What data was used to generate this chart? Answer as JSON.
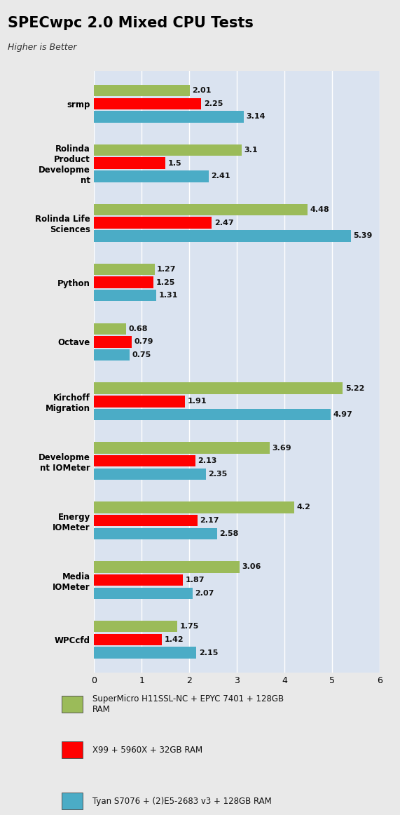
{
  "title": "SPECwpc 2.0 Mixed CPU Tests",
  "subtitle": "Higher is Better",
  "categories": [
    "srmp",
    "Rolinda\nProduct\nDevelopme\nnt",
    "Rolinda Life\nSciences",
    "Python",
    "Octave",
    "Kirchoff\nMigration",
    "Developme\nnt IOMeter",
    "Energy\nIOMeter",
    "Media\nIOMeter",
    "WPCcfd"
  ],
  "series": [
    {
      "name": "SuperMicro H11SSL-NC + EPYC 7401 + 128GB\nRAM",
      "color": "#9BBB59",
      "values": [
        2.01,
        3.1,
        4.48,
        1.27,
        0.68,
        5.22,
        3.69,
        4.2,
        3.06,
        1.75
      ]
    },
    {
      "name": "X99 + 5960X + 32GB RAM",
      "color": "#FF0000",
      "values": [
        2.25,
        1.5,
        2.47,
        1.25,
        0.79,
        1.91,
        2.13,
        2.17,
        1.87,
        1.42
      ]
    },
    {
      "name": "Tyan S7076 + (2)E5-2683 v3 + 128GB RAM",
      "color": "#4BACC6",
      "values": [
        3.14,
        2.41,
        5.39,
        1.31,
        0.75,
        4.97,
        2.35,
        2.58,
        2.07,
        2.15
      ]
    }
  ],
  "xlim": [
    0,
    6
  ],
  "xticks": [
    0,
    1,
    2,
    3,
    4,
    5,
    6
  ],
  "bar_height": 0.22,
  "chart_bg": "#DAE3F0",
  "outer_bg": "#E9E9E9",
  "title_fontsize": 15,
  "subtitle_fontsize": 9,
  "label_fontsize": 8.5,
  "value_fontsize": 8,
  "legend_fontsize": 8.5,
  "tick_fontsize": 9
}
